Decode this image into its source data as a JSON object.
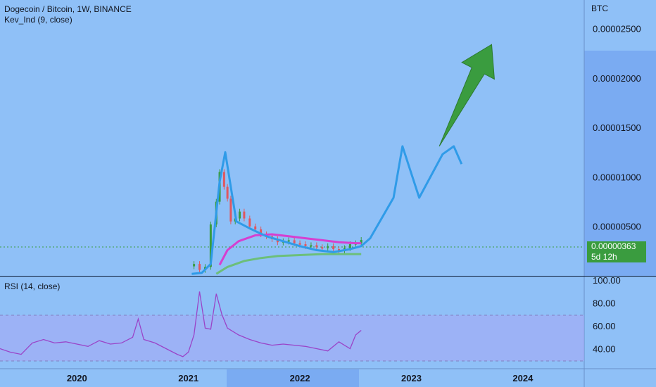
{
  "header": {
    "title": "Dogecoin / Bitcoin, 1W, BINANCE",
    "indicator": "Kev_Ind  (9, close)",
    "rsi_title": "RSI (14, close)",
    "currency": "BTC"
  },
  "current_price": {
    "value": "0.00000363",
    "countdown": "5d 12h",
    "color": "#3a9c3f"
  },
  "colors": {
    "background": "#8fc0f7",
    "axis_background": "#8fc0f7",
    "highlight_band": "#7aabf2",
    "rsi_band": "#a8a6f5",
    "blue_line": "#2f9be8",
    "magenta_line": "#d63fd0",
    "green_line": "#6cbf7a",
    "arrow": "#3a9c3f",
    "candle_up": "#3a9c3f",
    "candle_down": "#e0575f",
    "rsi_line": "#9a44c8"
  },
  "chart_data": [
    {
      "type": "line",
      "title": "Dogecoin / Bitcoin, 1W, BINANCE",
      "ylabel": "BTC",
      "y_ticks": [
        "0.00002500",
        "0.00002000",
        "0.00001500",
        "0.00001000",
        "0.00000500"
      ],
      "y_tick_values": [
        2.5e-05,
        2e-05,
        1.5e-05,
        1e-05,
        5e-06
      ],
      "x_ticks": [
        "2020",
        "2021",
        "2022",
        "2023",
        "2024"
      ],
      "x_tick_values": [
        2020.0,
        2021.0,
        2022.0,
        2023.0,
        2024.0
      ],
      "ylim": [
        0.0,
        2.79e-05
      ],
      "xlim": [
        2019.31,
        2024.55
      ],
      "series": [
        {
          "role": "price-candles",
          "x": [
            2021.05,
            2021.1,
            2021.15,
            2021.2,
            2021.25,
            2021.28,
            2021.32,
            2021.35,
            2021.38,
            2021.42,
            2021.46,
            2021.5,
            2021.55,
            2021.6,
            2021.65,
            2021.7,
            2021.75,
            2021.8,
            2021.85,
            2021.9,
            2021.95,
            2022.0,
            2022.05,
            2022.1,
            2022.15,
            2022.2,
            2022.25,
            2022.3,
            2022.35,
            2022.4,
            2022.45,
            2022.5,
            2022.55
          ],
          "y": [
            1.2e-06,
            6e-07,
            9e-07,
            5.2e-06,
            7.5e-06,
            1.05e-05,
            9e-06,
            7.8e-06,
            5.5e-06,
            5.8e-06,
            6.5e-06,
            5.8e-06,
            5e-06,
            4.7e-06,
            4.2e-06,
            4e-06,
            3.7e-06,
            3.4e-06,
            3.5e-06,
            3.6e-06,
            3.3e-06,
            3.2e-06,
            3e-06,
            3.1e-06,
            2.9e-06,
            2.8e-06,
            3e-06,
            2.7e-06,
            2.5e-06,
            2.8e-06,
            3.2e-06,
            3.3e-06,
            3.63e-06
          ]
        },
        {
          "role": "blue-line-with-projection",
          "x": [
            2021.03,
            2021.12,
            2021.2,
            2021.28,
            2021.33,
            2021.43,
            2021.55,
            2021.7,
            2021.85,
            2022.0,
            2022.15,
            2022.3,
            2022.45,
            2022.55,
            2022.63,
            2022.84,
            2022.92,
            2023.07,
            2023.28,
            2023.38,
            2023.45
          ],
          "y": [
            2e-07,
            3e-07,
            1.2e-06,
            9.5e-06,
            1.25e-05,
            5.5e-06,
            4.8e-06,
            4e-06,
            3.5e-06,
            3e-06,
            2.6e-06,
            2.4e-06,
            2.7e-06,
            3e-06,
            3.8e-06,
            7.9e-06,
            1.31e-05,
            7.9e-06,
            1.23e-05,
            1.31e-05,
            1.13e-05
          ]
        },
        {
          "role": "magenta-line",
          "x": [
            2021.28,
            2021.35,
            2021.45,
            2021.6,
            2021.75,
            2021.9,
            2022.05,
            2022.2,
            2022.35,
            2022.5,
            2022.55
          ],
          "y": [
            1.1e-06,
            2.6e-06,
            3.5e-06,
            4.1e-06,
            4.2e-06,
            4e-06,
            3.8e-06,
            3.6e-06,
            3.4e-06,
            3.3e-06,
            3.3e-06
          ]
        },
        {
          "role": "green-line",
          "x": [
            2021.25,
            2021.35,
            2021.5,
            2021.65,
            2021.8,
            2022.0,
            2022.2,
            2022.4,
            2022.55
          ],
          "y": [
            2e-07,
            9e-07,
            1.5e-06,
            1.8e-06,
            2e-06,
            2.1e-06,
            2.2e-06,
            2.2e-06,
            2.2e-06
          ]
        },
        {
          "role": "projection-arrow",
          "x": [
            2023.25,
            2023.72
          ],
          "y": [
            1.31e-05,
            2.34e-05
          ]
        }
      ],
      "current_value": 3.63e-06,
      "grid": false
    },
    {
      "type": "line",
      "title": "RSI (14, close)",
      "y_ticks": [
        "100.00",
        "80.00",
        "60.00",
        "40.00"
      ],
      "y_tick_values": [
        100,
        80,
        60,
        40
      ],
      "ylim": [
        20,
        100
      ],
      "band": [
        30,
        70
      ],
      "xlim": [
        2019.31,
        2024.55
      ],
      "series": [
        {
          "role": "rsi",
          "x": [
            2019.31,
            2019.4,
            2019.5,
            2019.6,
            2019.7,
            2019.8,
            2019.9,
            2020.0,
            2020.1,
            2020.2,
            2020.3,
            2020.4,
            2020.5,
            2020.55,
            2020.6,
            2020.7,
            2020.8,
            2020.9,
            2020.95,
            2021.0,
            2021.05,
            2021.1,
            2021.15,
            2021.2,
            2021.25,
            2021.3,
            2021.35,
            2021.45,
            2021.55,
            2021.65,
            2021.75,
            2021.85,
            2021.95,
            2022.05,
            2022.15,
            2022.25,
            2022.35,
            2022.45,
            2022.5,
            2022.55
          ],
          "y": [
            40,
            37,
            35,
            45,
            48,
            45,
            46,
            44,
            42,
            47,
            44,
            45,
            50,
            66,
            48,
            45,
            40,
            35,
            33,
            37,
            52,
            90,
            58,
            57,
            88,
            70,
            58,
            52,
            48,
            45,
            43,
            44,
            43,
            42,
            40,
            38,
            46,
            40,
            52,
            56
          ]
        }
      ],
      "grid": false
    }
  ]
}
